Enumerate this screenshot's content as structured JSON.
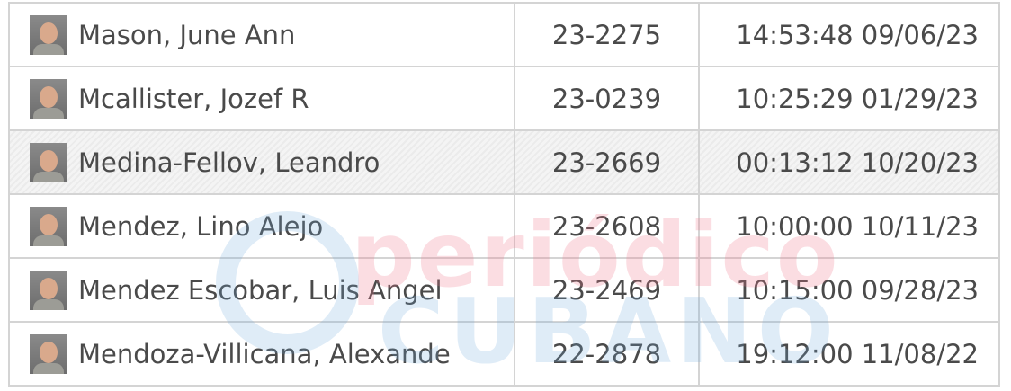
{
  "rows": [
    {
      "name": "Mason, June Ann",
      "booking": "23-2275",
      "datetime": "14:53:48 09/06/23",
      "highlighted": false
    },
    {
      "name": "Mcallister, Jozef R",
      "booking": "23-0239",
      "datetime": "10:25:29 01/29/23",
      "highlighted": false
    },
    {
      "name": "Medina-Fellov, Leandro",
      "booking": "23-2669",
      "datetime": "00:13:12 10/20/23",
      "highlighted": true
    },
    {
      "name": "Mendez, Lino Alejo",
      "booking": "23-2608",
      "datetime": "10:00:00 10/11/23",
      "highlighted": false
    },
    {
      "name": "Mendez Escobar, Luis Angel",
      "booking": "23-2469",
      "datetime": "10:15:00 09/28/23",
      "highlighted": false
    },
    {
      "name": "Mendoza-Villicana, Alexande",
      "booking": "22-2878",
      "datetime": "19:12:00 11/08/22",
      "highlighted": false
    }
  ],
  "watermark": {
    "line1": "periódico",
    "line2": "CUBANO"
  }
}
